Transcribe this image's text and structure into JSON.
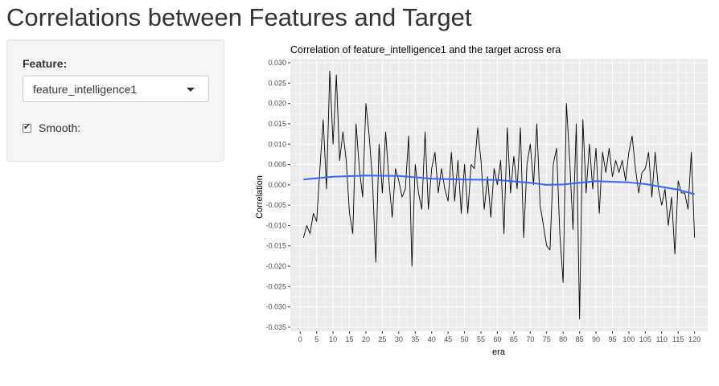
{
  "page": {
    "title": "Correlations between Features and Target"
  },
  "sidebar": {
    "feature_label": "Feature:",
    "feature_select": {
      "value": "feature_intelligence1",
      "caret_icon": "caret-down-icon"
    },
    "smooth": {
      "label": "Smooth:",
      "checked": true,
      "check_icon": "check-icon"
    }
  },
  "chart_data": {
    "type": "line",
    "title": "Correlation of feature_intelligence1 and the target across era",
    "xlabel": "era",
    "ylabel": "Correlation",
    "xlim": [
      -3,
      124
    ],
    "ylim": [
      -0.036,
      0.031
    ],
    "x_ticks": [
      0,
      5,
      10,
      15,
      20,
      25,
      30,
      35,
      40,
      45,
      50,
      55,
      60,
      65,
      70,
      75,
      80,
      85,
      90,
      95,
      100,
      105,
      110,
      115,
      120
    ],
    "y_ticks": [
      -0.035,
      -0.03,
      -0.025,
      -0.02,
      -0.015,
      -0.01,
      -0.005,
      0.0,
      0.005,
      0.01,
      0.015,
      0.02,
      0.025,
      0.03
    ],
    "y_tick_labels": [
      "-0.035",
      "-0.030",
      "-0.025",
      "-0.020",
      "-0.015",
      "-0.010",
      "-0.005",
      "0.000",
      "0.005",
      "0.010",
      "0.015",
      "0.020",
      "0.025",
      "0.030"
    ],
    "background": "#ebebeb",
    "grid": true,
    "series": [
      {
        "type": "line",
        "color": "#000000",
        "x": [
          1,
          2,
          3,
          4,
          5,
          6,
          7,
          8,
          9,
          10,
          11,
          12,
          13,
          14,
          15,
          16,
          17,
          18,
          19,
          20,
          21,
          22,
          23,
          24,
          25,
          26,
          27,
          28,
          29,
          30,
          31,
          32,
          33,
          34,
          35,
          36,
          37,
          38,
          39,
          40,
          41,
          42,
          43,
          44,
          45,
          46,
          47,
          48,
          49,
          50,
          51,
          52,
          53,
          54,
          55,
          56,
          57,
          58,
          59,
          60,
          61,
          62,
          63,
          64,
          65,
          66,
          67,
          68,
          69,
          70,
          71,
          72,
          73,
          74,
          75,
          76,
          77,
          78,
          79,
          80,
          81,
          82,
          83,
          84,
          85,
          86,
          87,
          88,
          89,
          90,
          91,
          92,
          93,
          94,
          95,
          96,
          97,
          98,
          99,
          100,
          101,
          102,
          103,
          104,
          105,
          106,
          107,
          108,
          109,
          110,
          111,
          112,
          113,
          114,
          115,
          116,
          117,
          118,
          119,
          120
        ],
        "y": [
          -0.013,
          -0.01,
          -0.012,
          -0.007,
          -0.009,
          0.004,
          0.016,
          -0.001,
          0.028,
          0.01,
          0.027,
          0.006,
          0.013,
          0.006,
          -0.007,
          -0.012,
          0.015,
          0.004,
          -0.003,
          0.02,
          0.012,
          0.001,
          -0.019,
          0.01,
          -0.002,
          0.013,
          0.001,
          -0.008,
          0.004,
          0.001,
          -0.003,
          -0.001,
          0.012,
          -0.02,
          0.005,
          -0.002,
          -0.006,
          0.013,
          -0.006,
          0.004,
          0.008,
          -0.002,
          0.004,
          -0.001,
          -0.004,
          0.008,
          -0.004,
          0.006,
          -0.007,
          0.005,
          -0.007,
          0.005,
          0.004,
          0.014,
          0.006,
          -0.006,
          0.002,
          -0.008,
          0.004,
          0.0,
          0.006,
          -0.012,
          0.014,
          -0.002,
          0.007,
          -0.001,
          0.014,
          -0.013,
          0.005,
          0.01,
          0.0,
          0.015,
          -0.005,
          -0.01,
          -0.015,
          -0.016,
          0.005,
          0.009,
          -0.012,
          -0.024,
          0.02,
          0.006,
          -0.011,
          0.015,
          -0.033,
          0.016,
          -0.002,
          0.01,
          -0.001,
          0.009,
          -0.007,
          0.008,
          0.003,
          0.009,
          0.002,
          0.006,
          0.003,
          0.006,
          0.001,
          0.008,
          0.012,
          0.004,
          -0.002,
          0.003,
          0.004,
          0.008,
          -0.003,
          0.008,
          -0.001,
          -0.005,
          -0.001,
          -0.01,
          -0.003,
          -0.017,
          0.001,
          -0.002,
          -0.002,
          -0.006,
          0.008,
          -0.013
        ]
      },
      {
        "type": "smooth",
        "color": "#3366ff",
        "x": [
          1,
          10,
          20,
          30,
          40,
          50,
          60,
          70,
          75,
          80,
          90,
          100,
          105,
          110,
          115,
          120
        ],
        "y": [
          0.0013,
          0.002,
          0.0023,
          0.0022,
          0.0015,
          0.0013,
          0.0012,
          0.0005,
          0.0,
          0.0001,
          0.0009,
          0.0006,
          0.0002,
          -0.0005,
          -0.0012,
          -0.0023
        ]
      }
    ]
  }
}
